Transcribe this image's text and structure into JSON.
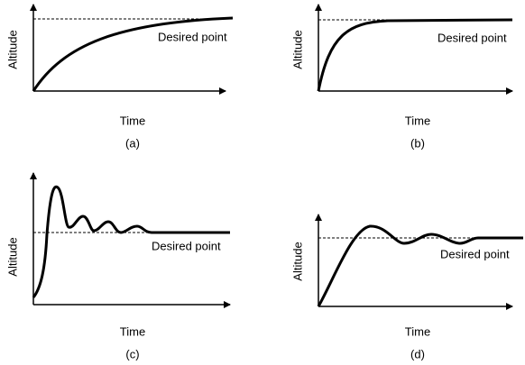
{
  "panels": [
    {
      "label": "(a)",
      "y_axis": "Altitude",
      "x_axis": "Time",
      "annotation": "Desired point"
    },
    {
      "label": "(b)",
      "y_axis": "Altitude",
      "x_axis": "Time",
      "annotation": "Desired point"
    },
    {
      "label": "(c)",
      "y_axis": "Altitude",
      "x_axis": "Time",
      "annotation": "Desired point"
    },
    {
      "label": "(d)",
      "y_axis": "Altitude",
      "x_axis": "Time",
      "annotation": "Desired point"
    }
  ]
}
